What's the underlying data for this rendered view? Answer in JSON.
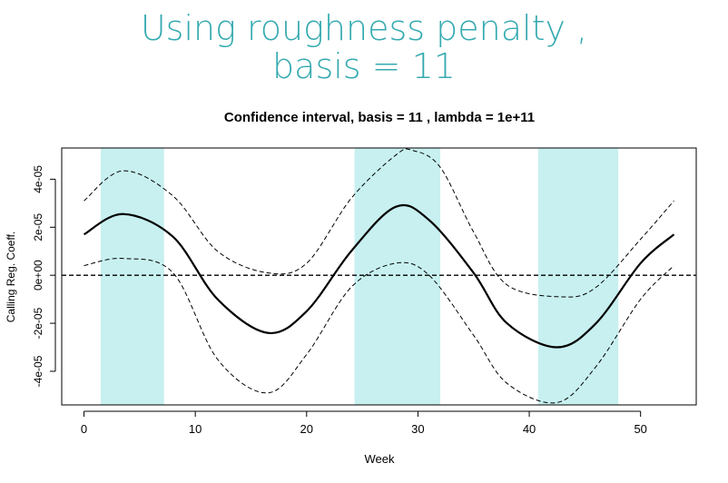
{
  "slide": {
    "title_line1": "Using roughness penalty ,",
    "title_line2": "basis = 11"
  },
  "colors": {
    "title": "#35aab0",
    "highlight_band": "#c8f0f0",
    "estimate_line": "#000000",
    "ci_line": "#000000"
  },
  "chart_data": {
    "type": "line",
    "title": "Confidence interval, basis = 11 , lambda = 1e+11",
    "xlabel": "Week",
    "ylabel": "Calling Reg. Coeff.",
    "xlim": [
      -2,
      55
    ],
    "ylim": [
      -5.4e-05,
      5.3e-05
    ],
    "x_ticks": [
      0,
      10,
      20,
      30,
      40,
      50
    ],
    "x_tick_labels": [
      "0",
      "10",
      "20",
      "30",
      "40",
      "50"
    ],
    "y_ticks": [
      -4e-05,
      -2e-05,
      0,
      2e-05,
      4e-05
    ],
    "y_tick_labels": [
      "-4e-05",
      "-2e-05",
      "0e+00",
      "2e-05",
      "4e-05"
    ],
    "reference_line_y": 0,
    "highlight_bands": [
      [
        1.5,
        7.2
      ],
      [
        24.3,
        32
      ],
      [
        40.8,
        48
      ]
    ],
    "series": [
      {
        "style": "solid",
        "x": [
          0,
          3.5,
          8,
          12,
          16.5,
          20,
          24,
          28,
          31,
          35,
          38,
          42.5,
          46,
          50,
          53
        ],
        "y": [
          1.7e-05,
          2.55e-05,
          1.6e-05,
          -1e-05,
          -2.4e-05,
          -1.5e-05,
          1e-05,
          2.85e-05,
          2.3e-05,
          1e-06,
          -2e-05,
          -3e-05,
          -2e-05,
          5e-06,
          1.7e-05
        ]
      },
      {
        "style": "dashed",
        "x": [
          0,
          3.5,
          8,
          12,
          16.5,
          20,
          24,
          28,
          29.5,
          32,
          35,
          38,
          43,
          46,
          50,
          53
        ],
        "y": [
          3.1e-05,
          4.35e-05,
          3.3e-05,
          1e-05,
          1e-06,
          5e-06,
          3.2e-05,
          5e-05,
          5.2e-05,
          4.5e-05,
          1.8e-05,
          -4e-06,
          -9e-06,
          -5e-06,
          1.5e-05,
          3.1e-05
        ]
      },
      {
        "style": "dashed",
        "x": [
          0,
          3.5,
          8,
          12,
          16.5,
          20,
          24,
          28,
          31,
          35,
          38,
          42.5,
          46,
          50,
          53
        ],
        "y": [
          4e-06,
          7e-06,
          1e-06,
          -3.5e-05,
          -4.9e-05,
          -3.3e-05,
          -5e-06,
          5e-06,
          0,
          -2.5e-05,
          -4.5e-05,
          -5.3e-05,
          -3.8e-05,
          -1e-05,
          4e-06
        ]
      }
    ]
  }
}
